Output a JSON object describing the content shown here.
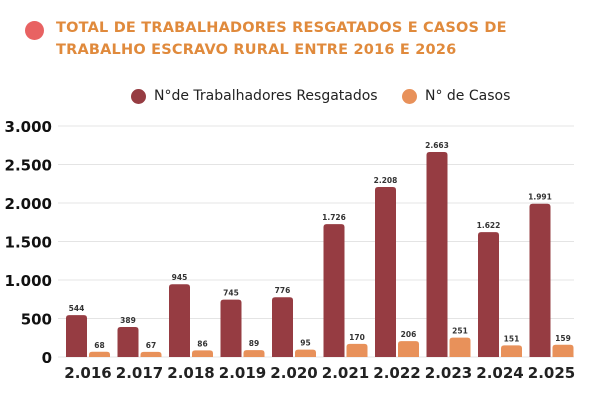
{
  "colors": {
    "resgatados": "#963c42",
    "casos": "#e8915a",
    "title": "#e08a3c",
    "title_dot": "#e86262",
    "grid": "#e4e4e4"
  },
  "chart_data": {
    "type": "bar",
    "title": "TOTAL DE TRABALHADORES RESGATADOS E CASOS DE TRABALHO ESCRAVO RURAL ENTRE 2016 E 2026",
    "title_lines": [
      "TOTAL DE TRABALHADORES RESGATADOS E CASOS DE",
      "TRABALHO ESCRAVO RURAL ENTRE 2016 E 2026"
    ],
    "categories": [
      "2.016",
      "2.017",
      "2.018",
      "2.019",
      "2.020",
      "2.021",
      "2.022",
      "2.023",
      "2.024",
      "2.025"
    ],
    "series": [
      {
        "name": "N°de Trabalhadores Resgatados",
        "values": [
          544,
          389,
          945,
          745,
          776,
          1726,
          2208,
          2663,
          1622,
          1991
        ],
        "labels": [
          "544",
          "389",
          "945",
          "745",
          "776",
          "1.726",
          "2.208",
          "2.663",
          "1.622",
          "1.991"
        ]
      },
      {
        "name": "N° de Casos",
        "values": [
          68,
          67,
          86,
          89,
          95,
          170,
          206,
          251,
          151,
          159
        ],
        "labels": [
          "68",
          "67",
          "86",
          "89",
          "95",
          "170",
          "206",
          "251",
          "151",
          "159"
        ]
      }
    ],
    "ylim": [
      0,
      3000
    ],
    "yticks": [
      0,
      500,
      1000,
      1500,
      2000,
      2500,
      3000
    ],
    "ytick_labels": [
      "0",
      "500",
      "1.000",
      "1.500",
      "2.000",
      "2.500",
      "3.000"
    ],
    "grid": true,
    "legend": "top-center"
  }
}
